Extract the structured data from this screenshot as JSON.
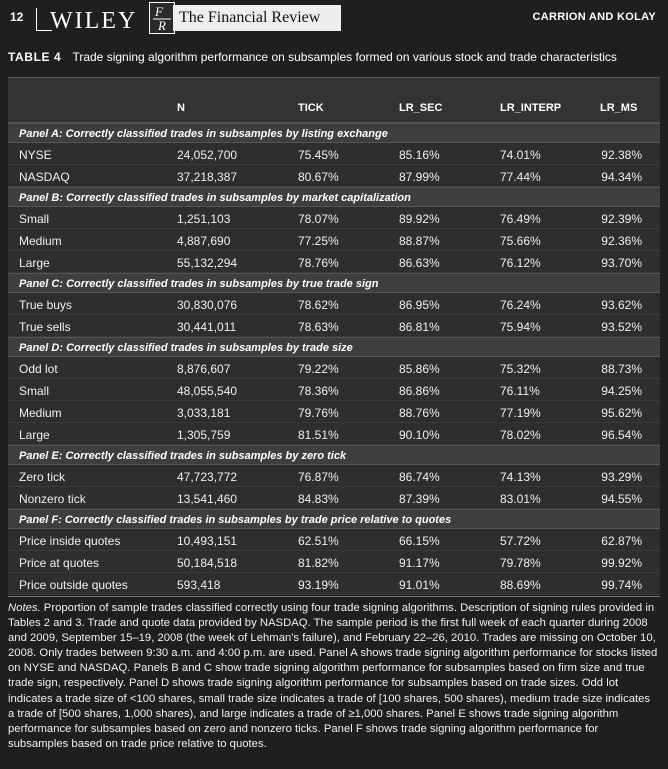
{
  "header": {
    "page_number": "12",
    "publisher": "WILEY",
    "journal_logo_text": "FR",
    "journal_title": "The Financial Review",
    "authors": "CARRION AND KOLAY"
  },
  "caption": {
    "label": "TABLE 4",
    "text": "Trade signing algorithm performance on subsamples formed on various stock and trade characteristics"
  },
  "table": {
    "columns": [
      "",
      "N",
      "TICK",
      "LR_SEC",
      "LR_INTERP",
      "LR_MS"
    ],
    "panels": [
      {
        "title": "Panel A: Correctly classified trades in subsamples by listing exchange",
        "rows": [
          [
            "NYSE",
            "24,052,700",
            "75.45%",
            "85.16%",
            "74.01%",
            "92.38%"
          ],
          [
            "NASDAQ",
            "37,218,387",
            "80.67%",
            "87.99%",
            "77.44%",
            "94.34%"
          ]
        ]
      },
      {
        "title": "Panel B: Correctly classified trades in subsamples by market capitalization",
        "rows": [
          [
            "Small",
            "1,251,103",
            "78.07%",
            "89.92%",
            "76.49%",
            "92.39%"
          ],
          [
            "Medium",
            "4,887,690",
            "77.25%",
            "88.87%",
            "75.66%",
            "92.36%"
          ],
          [
            "Large",
            "55,132,294",
            "78.76%",
            "86.63%",
            "76.12%",
            "93.70%"
          ]
        ]
      },
      {
        "title": "Panel C: Correctly classified trades in subsamples by true trade sign",
        "rows": [
          [
            "True buys",
            "30,830,076",
            "78.62%",
            "86.95%",
            "76.24%",
            "93.62%"
          ],
          [
            "True sells",
            "30,441,011",
            "78.63%",
            "86.81%",
            "75.94%",
            "93.52%"
          ]
        ]
      },
      {
        "title": "Panel D: Correctly classified trades in subsamples by trade size",
        "rows": [
          [
            "Odd lot",
            "8,876,607",
            "79.22%",
            "85.86%",
            "75.32%",
            "88.73%"
          ],
          [
            "Small",
            "48,055,540",
            "78.36%",
            "86.86%",
            "76.11%",
            "94.25%"
          ],
          [
            "Medium",
            "3,033,181",
            "79.76%",
            "88.76%",
            "77.19%",
            "95.62%"
          ],
          [
            "Large",
            "1,305,759",
            "81.51%",
            "90.10%",
            "78.02%",
            "96.54%"
          ]
        ]
      },
      {
        "title": "Panel E: Correctly classified trades in subsamples by zero tick",
        "rows": [
          [
            "Zero tick",
            "47,723,772",
            "76.87%",
            "86.74%",
            "74.13%",
            "93.29%"
          ],
          [
            "Nonzero tick",
            "13,541,460",
            "84.83%",
            "87.39%",
            "83.01%",
            "94.55%"
          ]
        ]
      },
      {
        "title": "Panel F: Correctly classified trades in subsamples by trade price relative to quotes",
        "rows": [
          [
            "Price inside quotes",
            "10,493,151",
            "62.51%",
            "66.15%",
            "57.72%",
            "62.87%"
          ],
          [
            "Price at quotes",
            "50,184,518",
            "81.82%",
            "91.17%",
            "79.78%",
            "99.92%"
          ],
          [
            "Price outside quotes",
            "593,418",
            "93.19%",
            "91.01%",
            "88.69%",
            "99.74%"
          ]
        ]
      }
    ]
  },
  "notes": {
    "label": "Notes.",
    "text": "Proportion of sample trades classified correctly using four trade signing algorithms. Description of signing rules provided in Tables 2 and 3. Trade and quote data provided by NASDAQ. The sample period is the first full week of each quarter during 2008 and 2009, September 15–19, 2008 (the week of Lehman's failure), and February 22–26, 2010. Trades are missing on October 10, 2008. Only trades between 9:30 a.m. and 4:00 p.m. are used. Panel A shows trade signing algorithm performance for stocks listed on NYSE and NASDAQ. Panels B and C show trade signing algorithm performance for subsamples based on firm size and true trade sign, respectively. Panel D shows trade signing algorithm performance for subsamples based on trade sizes. Odd lot indicates a trade size of <100 shares, small trade size indicates a trade of [100 shares, 500 shares), medium trade size indicates a trade of [500 shares, 1,000 shares), and large indicates a trade of ≥1,000 shares. Panel E shows trade signing algorithm performance for subsamples based on zero and nonzero ticks. Panel F shows trade signing algorithm performance for subsamples based on trade price relative to quotes."
  }
}
